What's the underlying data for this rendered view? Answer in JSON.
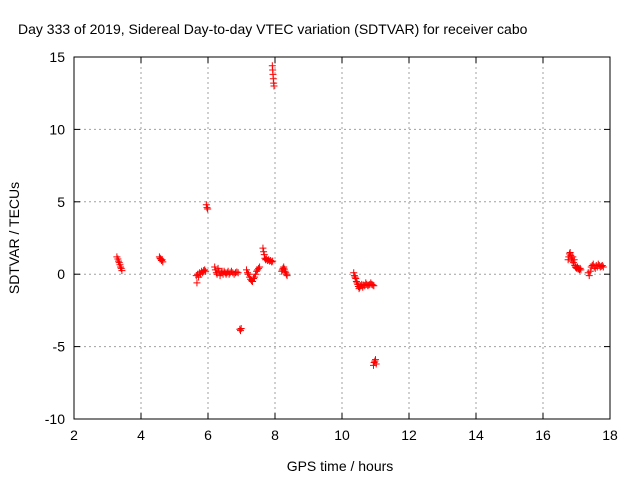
{
  "chart_data": {
    "type": "scatter",
    "title": "Day 333 of 2019, Sidereal Day-to-day VTEC variation (SDTVAR) for receiver cabo",
    "xlabel": "GPS time / hours",
    "ylabel": "SDTVAR / TECUs",
    "xlim": [
      2,
      18
    ],
    "ylim": [
      -10,
      15
    ],
    "xticks": [
      2,
      4,
      6,
      8,
      10,
      12,
      14,
      16,
      18
    ],
    "yticks": [
      -10,
      -5,
      0,
      5,
      10,
      15
    ],
    "grid": true,
    "marker": "+",
    "colors": {
      "points": "#ff0000",
      "grid": "#a0a0a0",
      "axes": "#000000"
    },
    "series": [
      {
        "name": "SDTVAR",
        "points": [
          [
            3.28,
            1.2
          ],
          [
            3.31,
            1.05
          ],
          [
            3.33,
            0.9
          ],
          [
            3.35,
            0.8
          ],
          [
            3.37,
            0.65
          ],
          [
            3.39,
            0.5
          ],
          [
            3.41,
            0.4
          ],
          [
            3.43,
            0.25
          ],
          [
            4.55,
            1.2
          ],
          [
            4.57,
            1.1
          ],
          [
            4.59,
            1.05
          ],
          [
            4.61,
            0.95
          ],
          [
            4.63,
            1.0
          ],
          [
            4.65,
            0.85
          ],
          [
            5.65,
            -0.1
          ],
          [
            5.67,
            -0.6
          ],
          [
            5.69,
            0.0
          ],
          [
            5.72,
            -0.2
          ],
          [
            5.75,
            0.1
          ],
          [
            5.78,
            0.0
          ],
          [
            5.81,
            0.2
          ],
          [
            5.84,
            0.1
          ],
          [
            5.87,
            0.25
          ],
          [
            5.9,
            0.3
          ],
          [
            5.93,
            0.2
          ],
          [
            5.95,
            4.8
          ],
          [
            5.97,
            4.6
          ],
          [
            5.99,
            4.5
          ],
          [
            6.2,
            0.5
          ],
          [
            6.22,
            0.3
          ],
          [
            6.25,
            0.1
          ],
          [
            6.27,
            0.0
          ],
          [
            6.3,
            0.4
          ],
          [
            6.33,
            0.2
          ],
          [
            6.36,
            -0.1
          ],
          [
            6.39,
            0.1
          ],
          [
            6.42,
            0.2
          ],
          [
            6.45,
            0.0
          ],
          [
            6.48,
            0.2
          ],
          [
            6.51,
            0.1
          ],
          [
            6.54,
            0.0
          ],
          [
            6.57,
            0.1
          ],
          [
            6.6,
            0.2
          ],
          [
            6.63,
            0.0
          ],
          [
            6.66,
            0.1
          ],
          [
            6.7,
            0.2
          ],
          [
            6.74,
            0.1
          ],
          [
            6.78,
            0.0
          ],
          [
            6.82,
            0.1
          ],
          [
            6.86,
            0.15
          ],
          [
            6.9,
            0.1
          ],
          [
            6.95,
            -3.8
          ],
          [
            6.97,
            -3.9
          ],
          [
            6.99,
            -3.75
          ],
          [
            7.15,
            0.3
          ],
          [
            7.18,
            0.1
          ],
          [
            7.21,
            0.0
          ],
          [
            7.24,
            -0.2
          ],
          [
            7.27,
            -0.35
          ],
          [
            7.3,
            -0.45
          ],
          [
            7.33,
            -0.5
          ],
          [
            7.36,
            -0.3
          ],
          [
            7.39,
            -0.2
          ],
          [
            7.42,
            0.0
          ],
          [
            7.45,
            0.2
          ],
          [
            7.48,
            0.3
          ],
          [
            7.51,
            0.4
          ],
          [
            7.54,
            0.5
          ],
          [
            7.64,
            1.8
          ],
          [
            7.66,
            1.55
          ],
          [
            7.68,
            1.35
          ],
          [
            7.7,
            1.1
          ],
          [
            7.72,
            1.0
          ],
          [
            7.75,
            1.05
          ],
          [
            7.78,
            0.95
          ],
          [
            7.81,
            1.0
          ],
          [
            7.84,
            0.9
          ],
          [
            7.87,
            0.95
          ],
          [
            7.9,
            0.85
          ],
          [
            7.93,
            0.9
          ],
          [
            7.92,
            14.4
          ],
          [
            7.93,
            14.1
          ],
          [
            7.94,
            13.8
          ],
          [
            7.95,
            13.5
          ],
          [
            7.96,
            13.2
          ],
          [
            7.97,
            13.0
          ],
          [
            8.2,
            0.2
          ],
          [
            8.22,
            0.3
          ],
          [
            8.24,
            0.4
          ],
          [
            8.26,
            0.5
          ],
          [
            8.28,
            0.35
          ],
          [
            8.3,
            0.2
          ],
          [
            8.32,
            0.1
          ],
          [
            8.34,
            0.0
          ],
          [
            8.36,
            -0.1
          ],
          [
            10.35,
            0.1
          ],
          [
            10.37,
            -0.1
          ],
          [
            10.39,
            -0.2
          ],
          [
            10.41,
            -0.3
          ],
          [
            10.43,
            -0.5
          ],
          [
            10.45,
            -0.6
          ],
          [
            10.47,
            -0.7
          ],
          [
            10.49,
            -0.85
          ],
          [
            10.51,
            -1.0
          ],
          [
            10.53,
            -0.9
          ],
          [
            10.56,
            -0.8
          ],
          [
            10.59,
            -0.7
          ],
          [
            10.62,
            -0.9
          ],
          [
            10.65,
            -0.75
          ],
          [
            10.68,
            -0.8
          ],
          [
            10.71,
            -0.6
          ],
          [
            10.74,
            -0.7
          ],
          [
            10.77,
            -0.8
          ],
          [
            10.8,
            -0.75
          ],
          [
            10.83,
            -0.7
          ],
          [
            10.86,
            -0.6
          ],
          [
            10.89,
            -0.7
          ],
          [
            10.92,
            -0.75
          ],
          [
            10.95,
            -0.8
          ],
          [
            10.94,
            -6.3
          ],
          [
            10.96,
            -6.1
          ],
          [
            10.98,
            -6.0
          ],
          [
            11.0,
            -5.9
          ],
          [
            11.02,
            -6.2
          ],
          [
            16.75,
            1.0
          ],
          [
            16.77,
            1.2
          ],
          [
            16.79,
            1.4
          ],
          [
            16.81,
            1.5
          ],
          [
            16.83,
            1.3
          ],
          [
            16.85,
            1.1
          ],
          [
            16.87,
            0.9
          ],
          [
            16.89,
            1.2
          ],
          [
            16.91,
            0.8
          ],
          [
            16.93,
            1.0
          ],
          [
            16.95,
            0.6
          ],
          [
            16.97,
            0.5
          ],
          [
            16.99,
            0.45
          ],
          [
            17.01,
            0.4
          ],
          [
            17.03,
            0.5
          ],
          [
            17.05,
            0.35
          ],
          [
            17.07,
            0.4
          ],
          [
            17.09,
            0.3
          ],
          [
            17.11,
            0.4
          ],
          [
            17.13,
            0.3
          ],
          [
            17.35,
            0.1
          ],
          [
            17.38,
            -0.1
          ],
          [
            17.41,
            0.2
          ],
          [
            17.44,
            0.5
          ],
          [
            17.47,
            0.6
          ],
          [
            17.5,
            0.7
          ],
          [
            17.53,
            0.5
          ],
          [
            17.56,
            0.4
          ],
          [
            17.59,
            0.6
          ],
          [
            17.62,
            0.5
          ],
          [
            17.65,
            0.7
          ],
          [
            17.68,
            0.6
          ],
          [
            17.71,
            0.5
          ],
          [
            17.74,
            0.55
          ],
          [
            17.77,
            0.6
          ],
          [
            17.8,
            0.5
          ]
        ]
      }
    ]
  }
}
